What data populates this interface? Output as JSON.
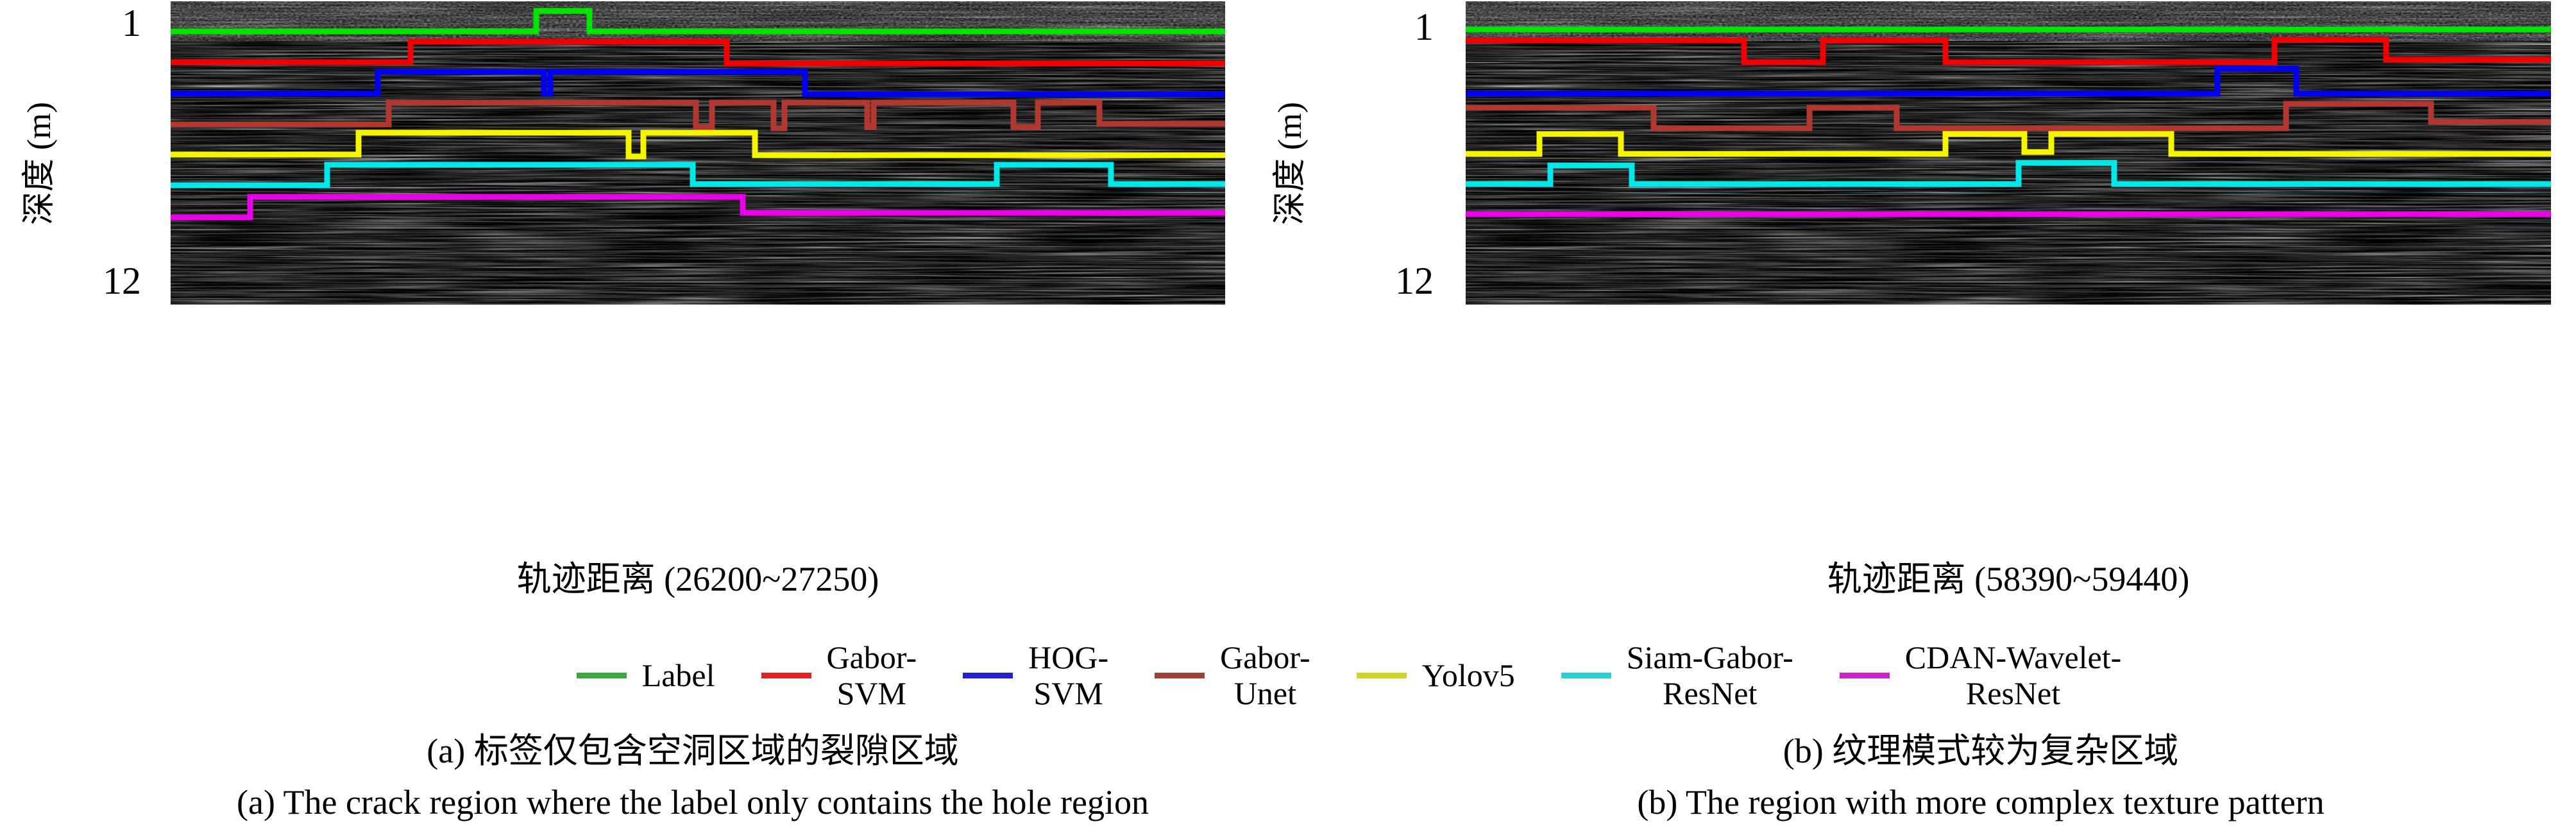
{
  "panels": [
    {
      "id": "a",
      "y_axis": {
        "label": "深度 (m)",
        "tick_top": "1",
        "tick_bottom": "12"
      },
      "x_axis_label": "轨迹距离 (26200~27250)",
      "caption_zh": "(a) 标签仅包含空洞区域的裂隙区域",
      "caption_en": "(a) The crack region where the label only contains the hole region"
    },
    {
      "id": "b",
      "y_axis": {
        "label": "深度 (m)",
        "tick_top": "1",
        "tick_bottom": "12"
      },
      "x_axis_label": "轨迹距离 (58390~59440)",
      "caption_zh": "(b) 纹理模式较为复杂区域",
      "caption_en": "(b) The region with more complex texture pattern"
    }
  ],
  "legend": [
    {
      "label": "Label",
      "line_color": "#00e400",
      "swatch_color": "#3aa83a"
    },
    {
      "label": "Gabor-\nSVM",
      "line_color": "#f00000",
      "swatch_color": "#e02222"
    },
    {
      "label": "HOG-\nSVM",
      "line_color": "#0000f0",
      "swatch_color": "#2222cc"
    },
    {
      "label": "Gabor-\nUnet",
      "line_color": "#b03830",
      "swatch_color": "#a04038"
    },
    {
      "label": "Yolov5",
      "line_color": "#f5f500",
      "swatch_color": "#d4d428"
    },
    {
      "label": "Siam-Gabor-\nResNet",
      "line_color": "#00e8e8",
      "swatch_color": "#28d0d0"
    },
    {
      "label": "CDAN-Wavelet-\nResNet",
      "line_color": "#e800e8",
      "swatch_color": "#cc22cc"
    }
  ],
  "overlays": {
    "a": [
      {
        "method": "Label",
        "points": [
          [
            0,
            47
          ],
          [
            570,
            47
          ],
          [
            570,
            15
          ],
          [
            653,
            15
          ],
          [
            653,
            47
          ],
          [
            1644,
            47
          ]
        ]
      },
      {
        "method": "Gabor-SVM",
        "points": [
          [
            0,
            95
          ],
          [
            374,
            95
          ],
          [
            374,
            63
          ],
          [
            867,
            63
          ],
          [
            867,
            97
          ],
          [
            1644,
            97
          ]
        ]
      },
      {
        "method": "HOG-SVM",
        "points": [
          [
            0,
            144
          ],
          [
            323,
            144
          ],
          [
            323,
            110
          ],
          [
            582,
            110
          ],
          [
            582,
            144
          ],
          [
            592,
            144
          ],
          [
            592,
            110
          ],
          [
            989,
            110
          ],
          [
            989,
            145
          ],
          [
            1644,
            145
          ]
        ]
      },
      {
        "method": "Gabor-Unet",
        "points": [
          [
            0,
            192
          ],
          [
            340,
            192
          ],
          [
            340,
            158
          ],
          [
            819,
            158
          ],
          [
            819,
            196
          ],
          [
            844,
            196
          ],
          [
            844,
            158
          ],
          [
            940,
            158
          ],
          [
            940,
            198
          ],
          [
            957,
            198
          ],
          [
            957,
            158
          ],
          [
            1086,
            158
          ],
          [
            1086,
            196
          ],
          [
            1096,
            196
          ],
          [
            1096,
            158
          ],
          [
            1314,
            158
          ],
          [
            1314,
            196
          ],
          [
            1352,
            196
          ],
          [
            1352,
            158
          ],
          [
            1448,
            158
          ],
          [
            1448,
            191
          ],
          [
            1644,
            191
          ]
        ]
      },
      {
        "method": "Yolov5",
        "points": [
          [
            0,
            239
          ],
          [
            293,
            239
          ],
          [
            293,
            205
          ],
          [
            714,
            205
          ],
          [
            714,
            242
          ],
          [
            737,
            242
          ],
          [
            737,
            205
          ],
          [
            911,
            205
          ],
          [
            911,
            240
          ],
          [
            1644,
            240
          ]
        ]
      },
      {
        "method": "Siam-Gabor-ResNet",
        "points": [
          [
            0,
            287
          ],
          [
            244,
            287
          ],
          [
            244,
            255
          ],
          [
            814,
            255
          ],
          [
            814,
            285
          ],
          [
            1288,
            285
          ],
          [
            1288,
            255
          ],
          [
            1466,
            255
          ],
          [
            1466,
            285
          ],
          [
            1644,
            285
          ]
        ]
      },
      {
        "method": "CDAN-Wavelet-ResNet",
        "points": [
          [
            0,
            337
          ],
          [
            124,
            337
          ],
          [
            124,
            305
          ],
          [
            892,
            305
          ],
          [
            892,
            330
          ],
          [
            1644,
            330
          ]
        ]
      }
    ],
    "b": [
      {
        "method": "Label",
        "points": [
          [
            0,
            44
          ],
          [
            1692,
            44
          ]
        ]
      },
      {
        "method": "Gabor-SVM",
        "points": [
          [
            0,
            61
          ],
          [
            434,
            61
          ],
          [
            434,
            95
          ],
          [
            557,
            95
          ],
          [
            557,
            61
          ],
          [
            748,
            61
          ],
          [
            748,
            95
          ],
          [
            1261,
            95
          ],
          [
            1261,
            60
          ],
          [
            1435,
            60
          ],
          [
            1435,
            91
          ],
          [
            1692,
            91
          ]
        ]
      },
      {
        "method": "HOG-SVM",
        "points": [
          [
            0,
            144
          ],
          [
            1172,
            144
          ],
          [
            1172,
            105
          ],
          [
            1295,
            105
          ],
          [
            1295,
            144
          ],
          [
            1692,
            144
          ]
        ]
      },
      {
        "method": "Gabor-Unet",
        "points": [
          [
            0,
            166
          ],
          [
            293,
            166
          ],
          [
            293,
            198
          ],
          [
            536,
            198
          ],
          [
            536,
            166
          ],
          [
            672,
            166
          ],
          [
            672,
            198
          ],
          [
            1279,
            198
          ],
          [
            1279,
            160
          ],
          [
            1505,
            160
          ],
          [
            1505,
            188
          ],
          [
            1692,
            188
          ]
        ]
      },
      {
        "method": "Yolov5",
        "points": [
          [
            0,
            238
          ],
          [
            115,
            238
          ],
          [
            115,
            207
          ],
          [
            242,
            207
          ],
          [
            242,
            238
          ],
          [
            748,
            238
          ],
          [
            748,
            207
          ],
          [
            871,
            207
          ],
          [
            871,
            235
          ],
          [
            913,
            235
          ],
          [
            913,
            207
          ],
          [
            1100,
            207
          ],
          [
            1100,
            238
          ],
          [
            1692,
            238
          ]
        ]
      },
      {
        "method": "Siam-Gabor-ResNet",
        "points": [
          [
            0,
            285
          ],
          [
            132,
            285
          ],
          [
            132,
            256
          ],
          [
            259,
            256
          ],
          [
            259,
            285
          ],
          [
            862,
            285
          ],
          [
            862,
            252
          ],
          [
            1011,
            252
          ],
          [
            1011,
            285
          ],
          [
            1692,
            285
          ]
        ]
      },
      {
        "method": "CDAN-Wavelet-ResNet",
        "points": [
          [
            0,
            332
          ],
          [
            1692,
            332
          ]
        ]
      }
    ]
  }
}
